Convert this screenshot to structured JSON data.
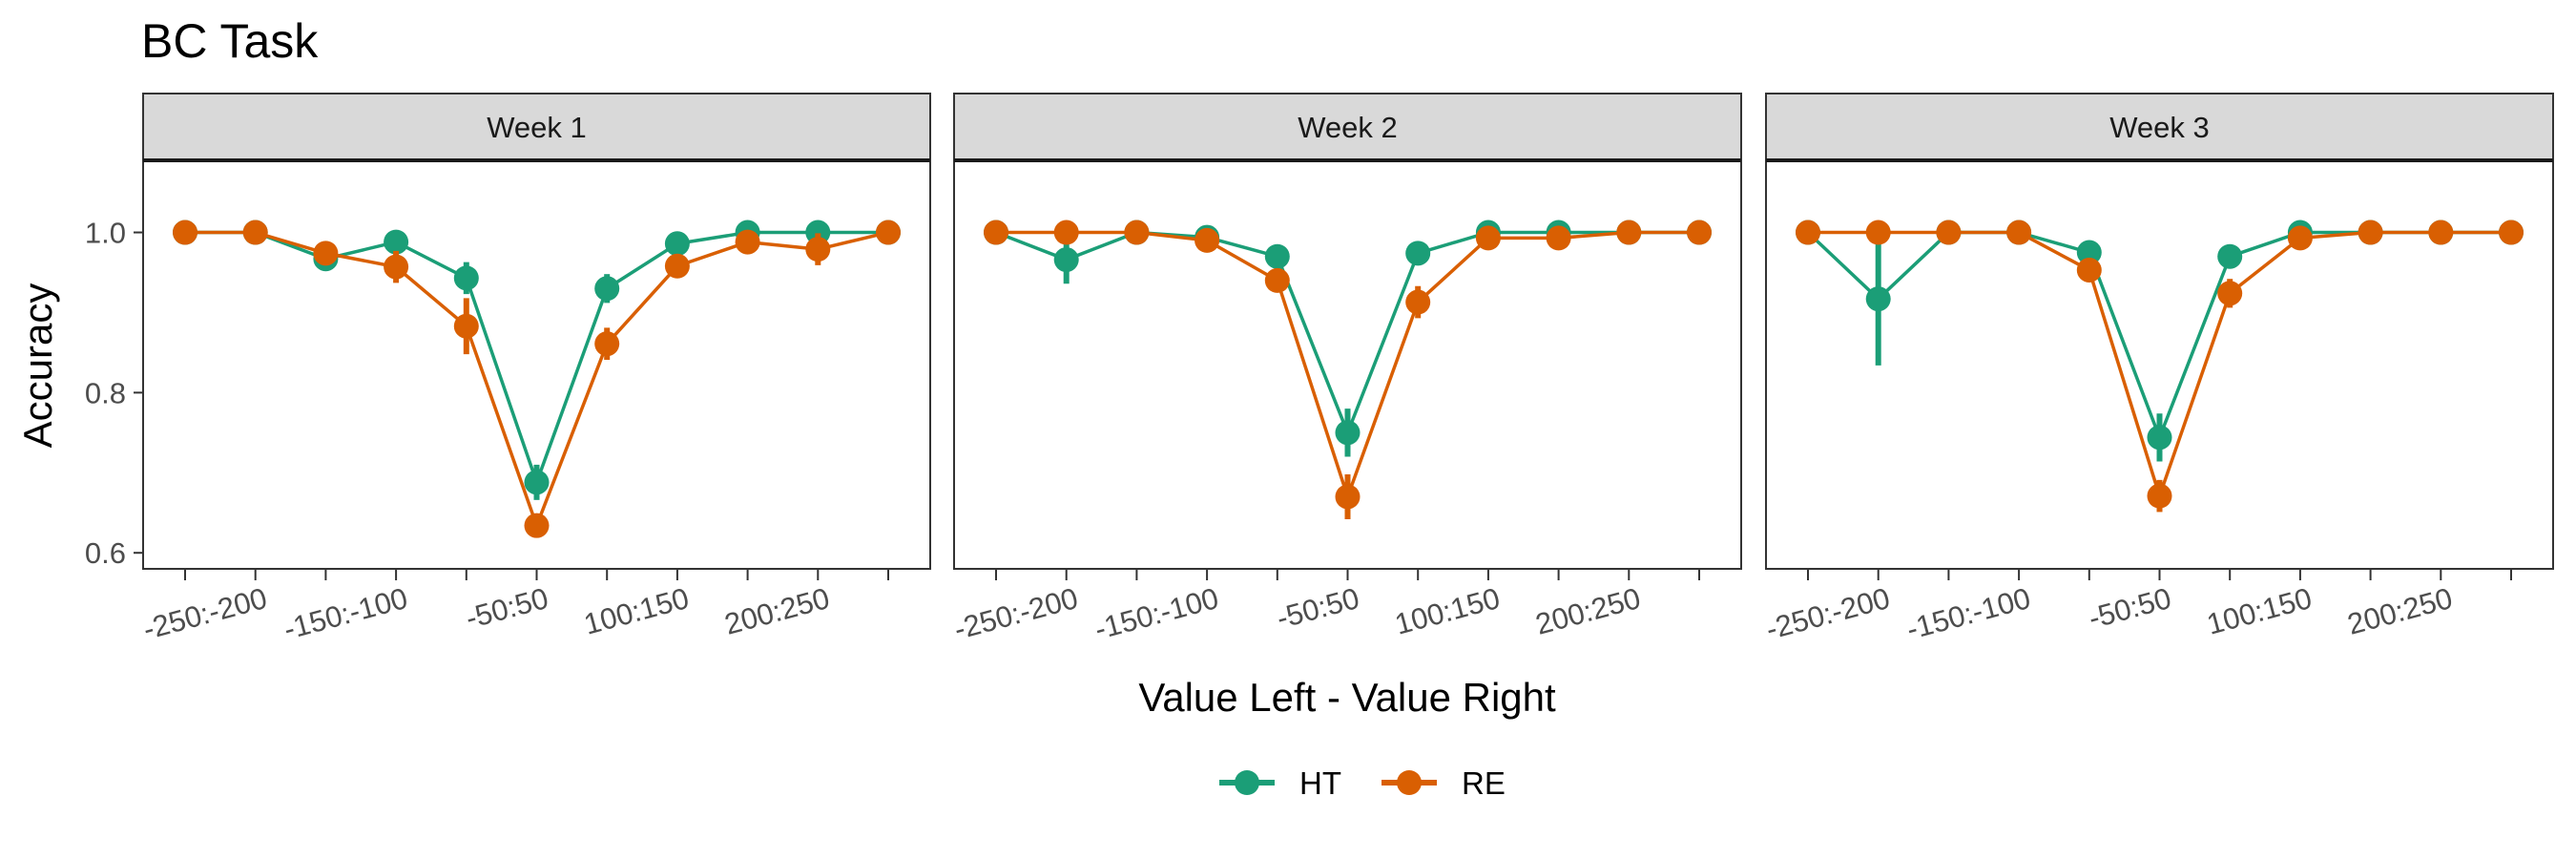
{
  "chart_data": {
    "type": "line",
    "title": "BC Task",
    "xlabel": "Value Left - Value Right",
    "ylabel": "Accuracy",
    "ylim": [
      0.58,
      1.09
    ],
    "yticks": [
      0.6,
      0.8,
      1.0
    ],
    "ytick_labels": [
      "0.6",
      "0.8",
      "1.0"
    ],
    "x_labeled_ticks": [
      "-250:-200",
      "-150:-100",
      "-50:50",
      "100:150",
      "200:250"
    ],
    "x_labeled_tick_positions": [
      2,
      4,
      6,
      8,
      10
    ],
    "x_tick_count": 11,
    "grid": false,
    "legend_position": "bottom",
    "colors": {
      "HT": "#1b9e77",
      "RE": "#d95f02"
    },
    "panels": [
      {
        "label": "Week 1",
        "series": [
          {
            "name": "HT",
            "values": [
              1.0,
              1.0,
              0.967,
              0.988,
              0.943,
              0.688,
              0.93,
              0.986,
              1.0,
              1.0,
              1.0
            ],
            "err": [
              0,
              0,
              0.01,
              0.008,
              0.02,
              0.022,
              0.018,
              0.008,
              0,
              0,
              0
            ]
          },
          {
            "name": "RE",
            "values": [
              1.0,
              1.0,
              0.974,
              0.957,
              0.883,
              0.634,
              0.861,
              0.958,
              0.988,
              0.979,
              1.0
            ],
            "err": [
              0,
              0,
              0.012,
              0.02,
              0.035,
              0.008,
              0.02,
              0.012,
              0.008,
              0.02,
              0
            ]
          }
        ]
      },
      {
        "label": "Week 2",
        "series": [
          {
            "name": "HT",
            "values": [
              1.0,
              0.966,
              1.0,
              0.994,
              0.97,
              0.75,
              0.974,
              1.0,
              1.0,
              1.0,
              1.0
            ],
            "err": [
              0,
              0.03,
              0,
              0.004,
              0.008,
              0.03,
              0.006,
              0,
              0,
              0,
              0
            ]
          },
          {
            "name": "RE",
            "values": [
              1.0,
              1.0,
              1.0,
              0.99,
              0.94,
              0.67,
              0.913,
              0.993,
              0.993,
              1.0,
              1.0
            ],
            "err": [
              0,
              0,
              0,
              0.008,
              0.015,
              0.028,
              0.02,
              0.006,
              0.006,
              0,
              0
            ]
          }
        ]
      },
      {
        "label": "Week 3",
        "series": [
          {
            "name": "HT",
            "values": [
              1.0,
              0.917,
              1.0,
              1.0,
              0.975,
              0.744,
              0.97,
              1.0,
              1.0,
              1.0,
              1.0
            ],
            "err": [
              0,
              0.083,
              0,
              0,
              0.006,
              0.03,
              0.007,
              0,
              0,
              0,
              0
            ]
          },
          {
            "name": "RE",
            "values": [
              1.0,
              1.0,
              1.0,
              1.0,
              0.953,
              0.671,
              0.924,
              0.993,
              1.0,
              1.0,
              1.0
            ],
            "err": [
              0,
              0,
              0,
              0,
              0.015,
              0.02,
              0.018,
              0.007,
              0,
              0,
              0
            ]
          }
        ]
      }
    ]
  }
}
